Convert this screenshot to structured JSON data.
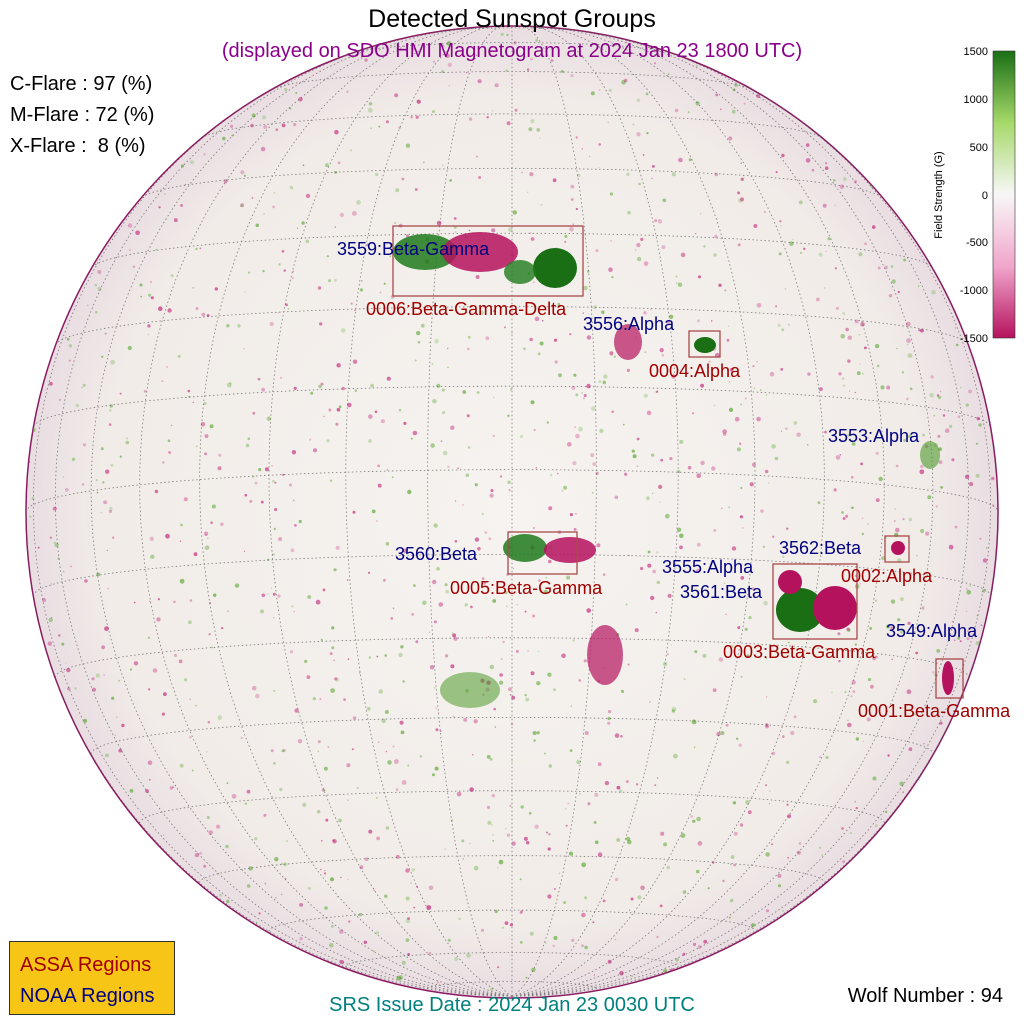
{
  "title": "Detected Sunspot Groups",
  "subtitle": "(displayed on SDO HMI Magnetogram at 2024 Jan 23 1800 UTC)",
  "flare_probabilities": [
    {
      "text": "C-Flare : 97 (%)",
      "class": "C",
      "percent": 97
    },
    {
      "text": "M-Flare : 72 (%)",
      "class": "M",
      "percent": 72
    },
    {
      "text": "X-Flare :  8 (%)",
      "class": "X",
      "percent": 8
    }
  ],
  "colorbar": {
    "label": "Field Strength (G)",
    "ticks": [
      "1500",
      "1000",
      "500",
      "0",
      "-500",
      "-1000",
      "-1500"
    ],
    "range": [
      -1500,
      1500
    ],
    "colors": {
      "positive": "#1a6e14",
      "zero": "#f7f7f7",
      "negative": "#b5125e"
    }
  },
  "legend": {
    "assa": "ASSA Regions",
    "noaa": "NOAA Regions",
    "colors": {
      "assa": "#a00000",
      "noaa": "#000080",
      "background": "#f7c516"
    }
  },
  "assa_regions": [
    {
      "label": "0006:Beta-Gamma-Delta"
    },
    {
      "label": "0004:Alpha"
    },
    {
      "label": "0005:Beta-Gamma"
    },
    {
      "label": "0002:Alpha"
    },
    {
      "label": "0003:Beta-Gamma"
    },
    {
      "label": "0001:Beta-Gamma"
    }
  ],
  "noaa_regions": [
    {
      "label": "3559:Beta-Gamma"
    },
    {
      "label": "3556:Alpha"
    },
    {
      "label": "3553:Alpha"
    },
    {
      "label": "3560:Beta"
    },
    {
      "label": "3562:Beta"
    },
    {
      "label": "3555:Alpha"
    },
    {
      "label": "3561:Beta"
    },
    {
      "label": "3549:Alpha"
    }
  ],
  "issue_date": "SRS Issue Date : 2024 Jan 23 0030 UTC",
  "wolf_number": "Wolf Number : 94"
}
